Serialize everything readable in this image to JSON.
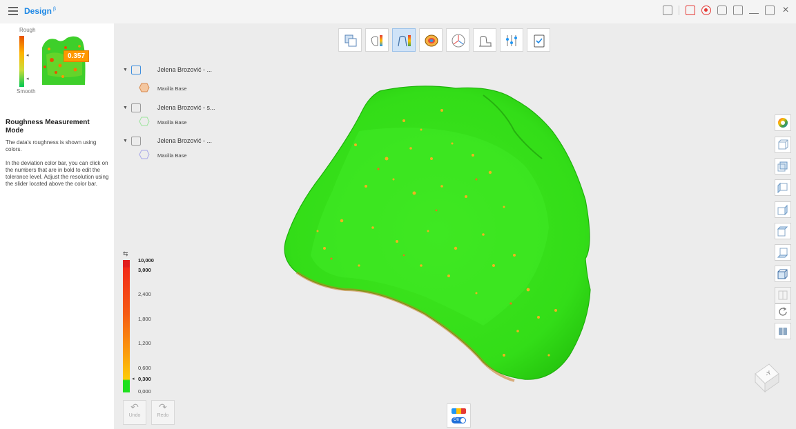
{
  "app": {
    "title": "Design",
    "beta": "β"
  },
  "guide": {
    "rough_label": "Rough",
    "smooth_label": "Smooth",
    "value_badge": "0.357",
    "mode_title": "Roughness Measurement Mode",
    "mode_desc": "The data's roughness is shown using colors.",
    "mode_desc2": "In the deviation color bar, you can click on the numbers that are in bold to edit the tolerance level. Adjust the resolution using the slider located above the color bar."
  },
  "tree": {
    "items": [
      {
        "name": "Jelena Brozović - ...",
        "child": "Maxilla Base",
        "active": true
      },
      {
        "name": "Jelena Brozović - s...",
        "child": "Maxilla Base",
        "active": false
      },
      {
        "name": "Jelena Brozović - ...",
        "child": "Maxilla Base",
        "active": false
      }
    ]
  },
  "scale": {
    "labels": [
      "10,000",
      "3,000",
      "2,400",
      "1,800",
      "1,200",
      "0,600",
      "0,300",
      "0,000"
    ],
    "bold": [
      "10,000",
      "3,000",
      "0,300"
    ]
  },
  "toolbar": {
    "undo": "Undo",
    "redo": "Redo"
  },
  "toggle": {
    "label": "On"
  },
  "icons": [
    "menu-icon",
    "capture-icon",
    "record-icon",
    "screenshot-icon",
    "window-icon",
    "minimize-icon",
    "restore-icon",
    "close-icon"
  ],
  "colors": {
    "accent": "#1e88e5",
    "model_green": "#38e21c",
    "rough_orange": "#f0a020"
  }
}
